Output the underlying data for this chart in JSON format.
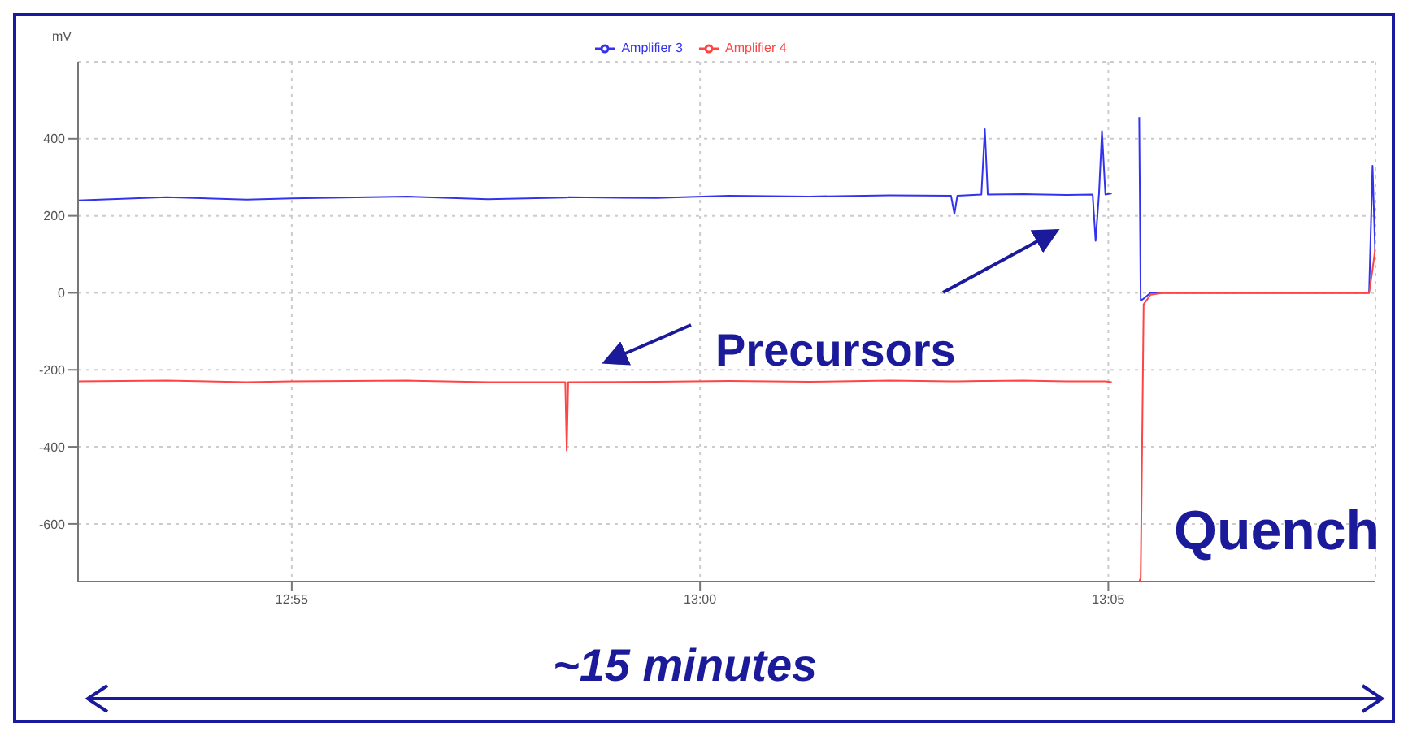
{
  "chart_data": {
    "type": "line",
    "ylabel": "mV",
    "legend": "top",
    "grid": true,
    "marker": "none",
    "line_style": "solid",
    "xlim": [
      12.8731,
      13.1378
    ],
    "xticks": [
      {
        "value": 12.9167,
        "label": "12:55"
      },
      {
        "value": 13.0,
        "label": "13:00"
      },
      {
        "value": 13.0833,
        "label": "13:05"
      }
    ],
    "ylim": [
      -750,
      600
    ],
    "yticks": [
      -600,
      -400,
      -200,
      0,
      200,
      400
    ],
    "x": [
      12.8731,
      12.8911,
      12.9075,
      12.9167,
      12.9403,
      12.9567,
      12.9725,
      12.9728,
      12.9731,
      12.9911,
      13.0059,
      13.0223,
      13.0387,
      13.0512,
      13.0519,
      13.0525,
      13.0574,
      13.0581,
      13.0587,
      13.066,
      13.0748,
      13.0801,
      13.0807,
      13.0814,
      13.082,
      13.0827,
      13.084,
      13.086,
      13.0896,
      13.0899,
      13.0905,
      13.0919,
      13.0945,
      13.1207,
      13.1365,
      13.1372,
      13.1378
    ],
    "series": [
      {
        "name": "Amplifier 3",
        "color": "#3333ee",
        "values": [
          240,
          248,
          242,
          245,
          250,
          243,
          247,
          247,
          248,
          246,
          252,
          250,
          253,
          252,
          205,
          252,
          255,
          425,
          255,
          256,
          254,
          255,
          135,
          258,
          420,
          255,
          258,
          null,
          456,
          -20,
          -15,
          0,
          0,
          0,
          0,
          330,
          80
        ]
      },
      {
        "name": "Amplifier 4",
        "color": "#ff4444",
        "values": [
          -230,
          -228,
          -232,
          -230,
          -228,
          -232,
          -232,
          -410,
          -232,
          -231,
          -229,
          -231,
          -228,
          -230,
          -230,
          -230,
          -229,
          -229,
          -229,
          -228,
          -230,
          -230,
          -230,
          -230,
          -230,
          -230,
          -232,
          null,
          -750,
          -740,
          -30,
          -5,
          0,
          0,
          0,
          60,
          120
        ]
      }
    ],
    "annotations": [
      "Precursors",
      "Quench",
      "~15 minutes"
    ]
  }
}
